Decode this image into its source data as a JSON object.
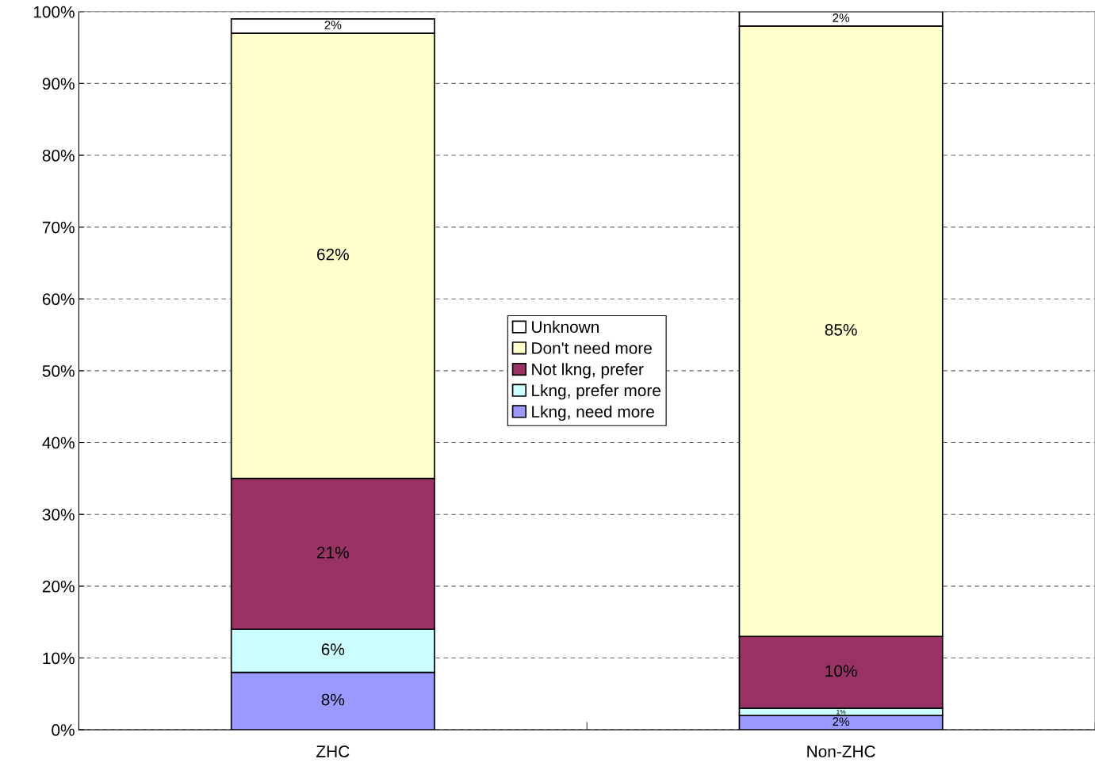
{
  "chart_data": {
    "type": "bar",
    "stacked": true,
    "categories": [
      "ZHC",
      "Non-ZHC"
    ],
    "series": [
      {
        "name": "Lkng, need more",
        "color": "#9999ff",
        "values": [
          8,
          2
        ],
        "value_labels": [
          "8%",
          "2%"
        ]
      },
      {
        "name": "Lkng, prefer more",
        "color": "#ccffff",
        "values": [
          6,
          1
        ],
        "value_labels": [
          "6%",
          "1%"
        ]
      },
      {
        "name": "Not lkng, prefer",
        "color": "#993366",
        "values": [
          21,
          10
        ],
        "value_labels": [
          "21%",
          "10%"
        ]
      },
      {
        "name": "Don't need more",
        "color": "#ffffcc",
        "values": [
          62,
          85
        ],
        "value_labels": [
          "62%",
          "85%"
        ]
      },
      {
        "name": "Unknown",
        "color": "#ffffff",
        "values": [
          2,
          2
        ],
        "value_labels": [
          "2%",
          "2%"
        ]
      }
    ],
    "ylim": [
      0,
      100
    ],
    "yticks": [
      {
        "value": 0,
        "label": "0%"
      },
      {
        "value": 10,
        "label": "10%"
      },
      {
        "value": 20,
        "label": "20%"
      },
      {
        "value": 30,
        "label": "30%"
      },
      {
        "value": 40,
        "label": "40%"
      },
      {
        "value": 50,
        "label": "50%"
      },
      {
        "value": 60,
        "label": "60%"
      },
      {
        "value": 70,
        "label": "70%"
      },
      {
        "value": 80,
        "label": "80%"
      },
      {
        "value": 90,
        "label": "90%"
      },
      {
        "value": 100,
        "label": "100%"
      }
    ],
    "grid": "y",
    "legend": "center"
  }
}
